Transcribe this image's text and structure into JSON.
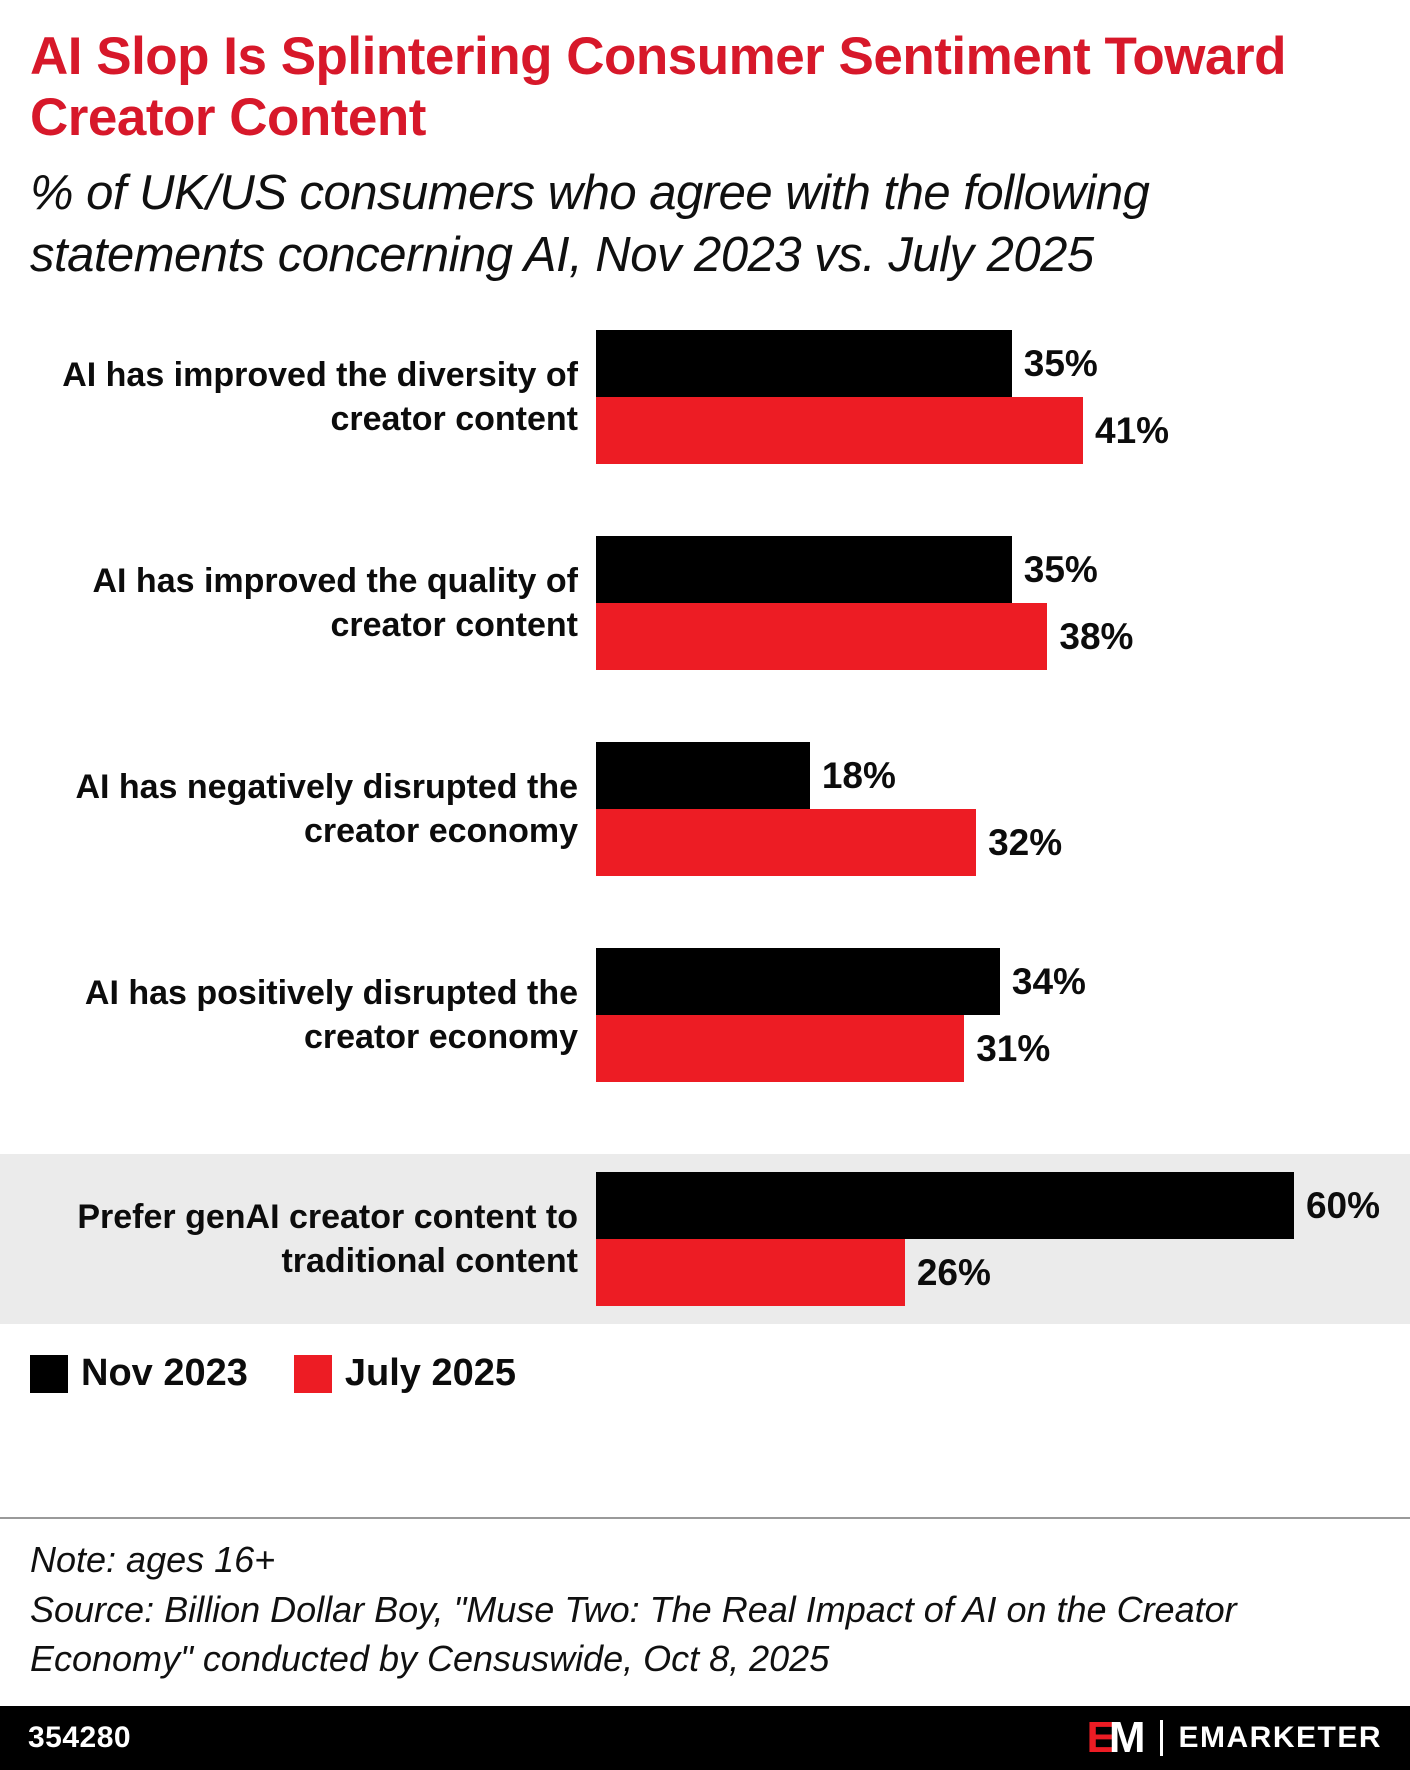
{
  "header": {
    "title": "AI Slop Is Splintering Consumer Sentiment Toward Creator Content",
    "subtitle": "% of UK/US consumers who agree with the following statements concerning AI, Nov 2023 vs. July 2025"
  },
  "chart_data": {
    "type": "bar",
    "orientation": "horizontal",
    "title": "AI Slop Is Splintering Consumer Sentiment Toward Creator Content",
    "subtitle": "% of UK/US consumers who agree with the following statements concerning AI, Nov 2023 vs. July 2025",
    "categories": [
      "AI has improved the diversity of creator content",
      "AI has improved the quality of creator content",
      "AI has negatively disrupted the creator economy",
      "AI has positively disrupted the creator economy",
      "Prefer genAI creator content to traditional content"
    ],
    "series": [
      {
        "name": "Nov 2023",
        "color": "#000000",
        "values": [
          35,
          35,
          18,
          34,
          60
        ],
        "labels": [
          "35%",
          "35%",
          "18%",
          "34%",
          "60%"
        ]
      },
      {
        "name": "July 2025",
        "color": "#ed1c24",
        "values": [
          41,
          38,
          32,
          31,
          26
        ],
        "labels": [
          "41%",
          "38%",
          "32%",
          "31%",
          "26%"
        ]
      }
    ],
    "value_suffix": "%",
    "axis_max": 66,
    "grid": false,
    "legend_position": "bottom-left",
    "highlighted_category_index": 4
  },
  "colors": {
    "title": "#d7182a",
    "bar_nov_2023": "#000000",
    "bar_july_2025": "#ed1c24",
    "highlight_row_bg": "#ebebeb",
    "footer_bg": "#000000"
  },
  "notes": {
    "note": "Note: ages 16+",
    "source": "Source: Billion Dollar Boy, \"Muse Two: The Real Impact of AI on the Creator Economy\" conducted by Censuswide, Oct 8, 2025"
  },
  "footer": {
    "chart_id": "354280",
    "logo_e": "E",
    "logo_m": "M",
    "brand": "EMARKETER"
  }
}
